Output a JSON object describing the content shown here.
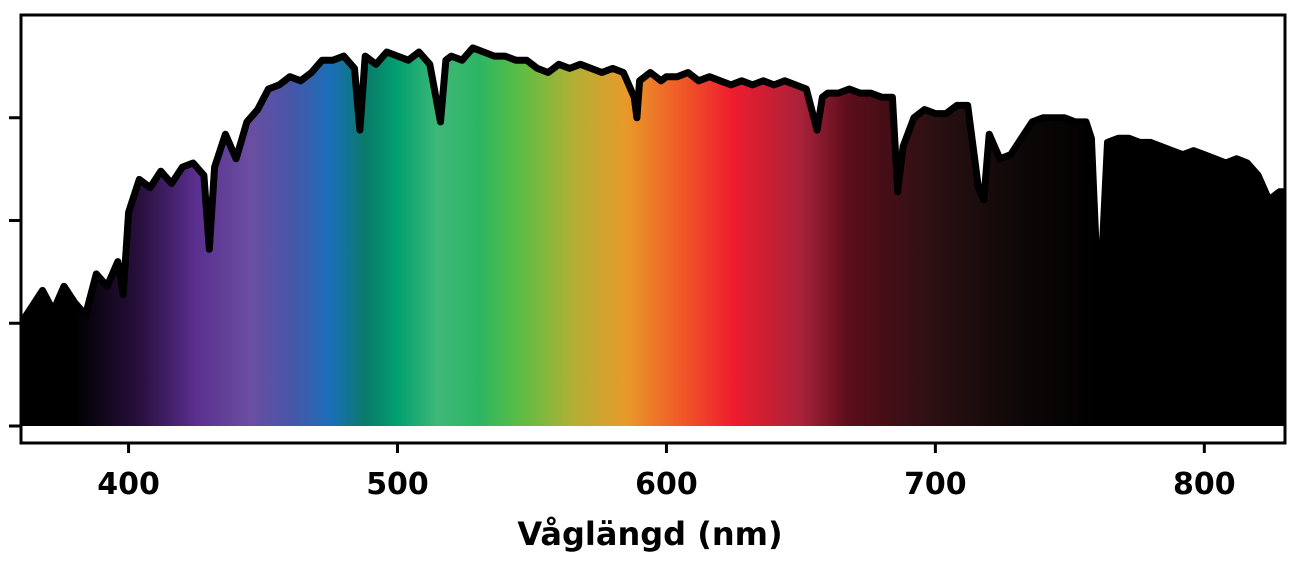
{
  "chart_data": {
    "type": "area",
    "title": "",
    "xlabel": "Våglängd (nm)",
    "ylabel": "",
    "xlim": [
      360,
      830
    ],
    "ylim": [
      0,
      1.0
    ],
    "x_ticks": [
      400,
      500,
      600,
      700,
      800
    ],
    "x_tick_labels": [
      "400",
      "500",
      "600",
      "700",
      "800"
    ],
    "y_ticks": [
      0,
      0.25,
      0.5,
      0.75
    ],
    "y_tick_labels": [
      "",
      "",
      "",
      ""
    ],
    "grid": false,
    "legend": "none",
    "fill": "visible-spectrum gradient (380–730 nm), black outside",
    "series": [
      {
        "x": [
          360,
          364,
          368,
          372,
          376,
          380,
          384,
          388,
          392,
          396,
          398,
          400,
          404,
          408,
          412,
          416,
          420,
          424,
          428,
          430,
          432,
          436,
          440,
          444,
          448,
          452,
          456,
          460,
          464,
          468,
          472,
          476,
          480,
          484,
          486,
          488,
          492,
          496,
          500,
          504,
          508,
          512,
          516,
          518,
          520,
          524,
          528,
          532,
          536,
          540,
          544,
          548,
          552,
          556,
          560,
          564,
          568,
          572,
          576,
          580,
          584,
          588,
          589,
          590,
          594,
          598,
          600,
          604,
          608,
          612,
          616,
          620,
          624,
          628,
          632,
          636,
          640,
          644,
          648,
          652,
          656,
          658,
          660,
          664,
          668,
          672,
          676,
          680,
          684,
          686,
          688,
          692,
          696,
          700,
          704,
          708,
          712,
          716,
          718,
          720,
          724,
          728,
          732,
          736,
          740,
          744,
          748,
          752,
          756,
          758,
          760,
          762,
          764,
          768,
          772,
          776,
          780,
          784,
          788,
          792,
          796,
          800,
          804,
          808,
          812,
          816,
          820,
          824,
          828,
          830
        ],
        "y": [
          0.25,
          0.29,
          0.33,
          0.28,
          0.34,
          0.3,
          0.27,
          0.37,
          0.34,
          0.4,
          0.32,
          0.52,
          0.6,
          0.58,
          0.62,
          0.59,
          0.63,
          0.64,
          0.61,
          0.43,
          0.63,
          0.71,
          0.65,
          0.74,
          0.77,
          0.82,
          0.83,
          0.85,
          0.84,
          0.86,
          0.89,
          0.89,
          0.9,
          0.87,
          0.72,
          0.9,
          0.88,
          0.91,
          0.9,
          0.89,
          0.91,
          0.88,
          0.74,
          0.89,
          0.9,
          0.89,
          0.92,
          0.91,
          0.9,
          0.9,
          0.89,
          0.89,
          0.87,
          0.86,
          0.88,
          0.87,
          0.88,
          0.87,
          0.86,
          0.87,
          0.86,
          0.8,
          0.75,
          0.84,
          0.86,
          0.84,
          0.85,
          0.85,
          0.86,
          0.84,
          0.85,
          0.84,
          0.83,
          0.84,
          0.83,
          0.84,
          0.83,
          0.84,
          0.83,
          0.82,
          0.72,
          0.8,
          0.81,
          0.81,
          0.82,
          0.81,
          0.81,
          0.8,
          0.8,
          0.57,
          0.68,
          0.75,
          0.77,
          0.76,
          0.76,
          0.78,
          0.78,
          0.58,
          0.55,
          0.71,
          0.65,
          0.66,
          0.7,
          0.74,
          0.75,
          0.75,
          0.75,
          0.74,
          0.74,
          0.7,
          0.4,
          0.42,
          0.69,
          0.7,
          0.7,
          0.69,
          0.69,
          0.68,
          0.67,
          0.66,
          0.67,
          0.66,
          0.65,
          0.64,
          0.65,
          0.64,
          0.61,
          0.55,
          0.57,
          0.57
        ]
      }
    ]
  },
  "colors": {
    "outline": "#000000",
    "background": "#ffffff",
    "spectrum_stops": [
      {
        "nm": 380,
        "color": "#000000"
      },
      {
        "nm": 405,
        "color": "#2a1040"
      },
      {
        "nm": 425,
        "color": "#5a2f8f"
      },
      {
        "nm": 445,
        "color": "#6a4ea0"
      },
      {
        "nm": 460,
        "color": "#4a55a8"
      },
      {
        "nm": 475,
        "color": "#1a6fb8"
      },
      {
        "nm": 488,
        "color": "#0a7a6a"
      },
      {
        "nm": 500,
        "color": "#00a070"
      },
      {
        "nm": 515,
        "color": "#3fb877"
      },
      {
        "nm": 530,
        "color": "#2cb564"
      },
      {
        "nm": 545,
        "color": "#5abd45"
      },
      {
        "nm": 565,
        "color": "#b0b035"
      },
      {
        "nm": 585,
        "color": "#e89a2a"
      },
      {
        "nm": 605,
        "color": "#f05a28"
      },
      {
        "nm": 625,
        "color": "#ee1c2e"
      },
      {
        "nm": 650,
        "color": "#a8223a"
      },
      {
        "nm": 668,
        "color": "#5a0d1a"
      },
      {
        "nm": 700,
        "color": "#2a1012"
      },
      {
        "nm": 730,
        "color": "#0e0808"
      },
      {
        "nm": 760,
        "color": "#000000"
      }
    ]
  }
}
